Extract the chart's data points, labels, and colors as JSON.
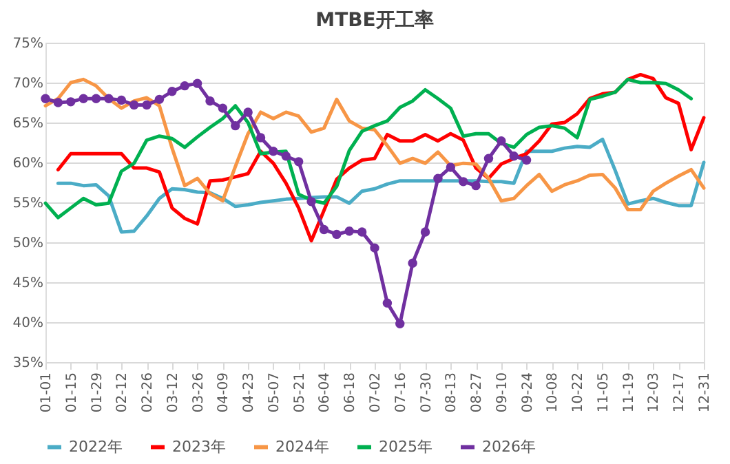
{
  "chart_data": {
    "type": "line",
    "title": "MTBE开工率",
    "categories": [
      "01-01",
      null,
      "01-15",
      null,
      "01-29",
      null,
      "02-12",
      null,
      "02-26",
      null,
      "03-12",
      null,
      "03-26",
      null,
      "04-09",
      null,
      "04-23",
      null,
      "05-07",
      null,
      "05-21",
      null,
      "06-04",
      null,
      "06-18",
      null,
      "07-02",
      null,
      "07-16",
      null,
      "07-30",
      null,
      "08-13",
      null,
      "08-27",
      null,
      "09-10",
      null,
      "09-24",
      null,
      "10-08",
      null,
      "10-22",
      null,
      "11-05",
      null,
      "11-19",
      null,
      "12-03",
      null,
      "12-17",
      null,
      "12-31"
    ],
    "ylim": [
      35,
      75
    ],
    "yticks": [
      {
        "value": 35,
        "label": "35%"
      },
      {
        "value": 40,
        "label": "40%"
      },
      {
        "value": 45,
        "label": "45%"
      },
      {
        "value": 50,
        "label": "50%"
      },
      {
        "value": 55,
        "label": "55%"
      },
      {
        "value": 60,
        "label": "60%"
      },
      {
        "value": 65,
        "label": "65%"
      },
      {
        "value": 70,
        "label": "70%"
      },
      {
        "value": 75,
        "label": "75%"
      }
    ],
    "grid": "y",
    "legend": "bottom",
    "series": [
      {
        "name": "2022年",
        "color": "#4bacc6",
        "values": [
          null,
          57.4,
          57.4,
          57.1,
          57.2,
          55.8,
          51.3,
          51.4,
          53.3,
          55.5,
          56.7,
          56.6,
          56.3,
          56.2,
          55.5,
          54.5,
          54.7,
          55.0,
          55.2,
          55.4,
          55.5,
          55.6,
          55.7,
          55.7,
          54.9,
          56.4,
          56.7,
          57.3,
          57.7,
          57.7,
          57.7,
          57.7,
          57.7,
          57.7,
          57.7,
          57.6,
          57.6,
          57.4,
          61.4,
          61.4,
          61.4,
          61.8,
          62.0,
          61.9,
          62.9,
          59.0,
          54.8,
          55.2,
          55.5,
          55.0,
          54.6,
          54.6,
          60.0
        ]
      },
      {
        "name": "2023年",
        "color": "#ff0000",
        "values": [
          null,
          59.1,
          61.1,
          61.1,
          61.1,
          61.1,
          61.1,
          59.3,
          59.3,
          58.8,
          54.3,
          53.0,
          52.3,
          57.7,
          57.8,
          58.2,
          58.6,
          61.4,
          59.9,
          57.4,
          54.3,
          50.2,
          54.0,
          57.9,
          59.3,
          60.3,
          60.5,
          63.5,
          62.7,
          62.7,
          63.5,
          62.7,
          63.6,
          62.8,
          59.3,
          58.0,
          59.8,
          60.5,
          61.1,
          62.7,
          64.8,
          65.0,
          66.1,
          68.0,
          68.6,
          68.8,
          70.4,
          71.0,
          70.5,
          68.1,
          67.4,
          61.6,
          65.6
        ]
      },
      {
        "name": "2024年",
        "color": "#f79646",
        "values": [
          67.1,
          68.0,
          70.0,
          70.4,
          69.6,
          68.0,
          66.8,
          67.7,
          68.1,
          67.1,
          61.8,
          57.1,
          58.0,
          56.1,
          55.2,
          59.5,
          63.6,
          66.3,
          65.5,
          66.3,
          65.8,
          63.8,
          64.3,
          67.9,
          65.2,
          64.3,
          64.1,
          62.1,
          59.9,
          60.5,
          59.9,
          61.3,
          59.6,
          59.9,
          59.8,
          58.0,
          55.2,
          55.5,
          57.1,
          58.5,
          56.4,
          57.2,
          57.7,
          58.4,
          58.5,
          56.8,
          54.1,
          54.1,
          56.4,
          57.4,
          58.3,
          59.1,
          56.8
        ]
      },
      {
        "name": "2025年",
        "color": "#00b050",
        "values": [
          54.9,
          53.1,
          54.3,
          55.5,
          54.7,
          54.9,
          58.9,
          59.9,
          62.8,
          63.3,
          63.0,
          61.9,
          63.2,
          64.4,
          65.5,
          67.1,
          65.0,
          61.1,
          61.3,
          61.4,
          56.0,
          55.3,
          54.9,
          57.0,
          61.5,
          63.9,
          64.6,
          65.2,
          66.9,
          67.7,
          69.1,
          68.0,
          66.8,
          63.3,
          63.6,
          63.6,
          62.4,
          61.9,
          63.5,
          64.4,
          64.6,
          64.3,
          63.1,
          67.9,
          68.3,
          68.8,
          70.4,
          70.0,
          70.0,
          69.9,
          69.1,
          68.0,
          null
        ]
      },
      {
        "name": "2026年",
        "color": "#7030a0",
        "marker": "circle",
        "values": [
          68.0,
          67.5,
          67.6,
          68.0,
          68.0,
          68.0,
          67.8,
          67.2,
          67.2,
          67.9,
          68.9,
          69.6,
          69.9,
          67.7,
          66.8,
          64.6,
          66.3,
          63.1,
          61.4,
          60.8,
          60.1,
          55.1,
          51.6,
          51.0,
          51.4,
          51.3,
          49.3,
          42.4,
          39.8,
          47.4,
          51.3,
          58.0,
          59.4,
          57.6,
          57.1,
          60.5,
          62.7,
          60.8,
          60.3,
          null,
          null,
          null,
          null,
          null,
          null,
          null,
          null,
          null,
          null,
          null,
          null,
          null,
          null
        ]
      }
    ]
  }
}
